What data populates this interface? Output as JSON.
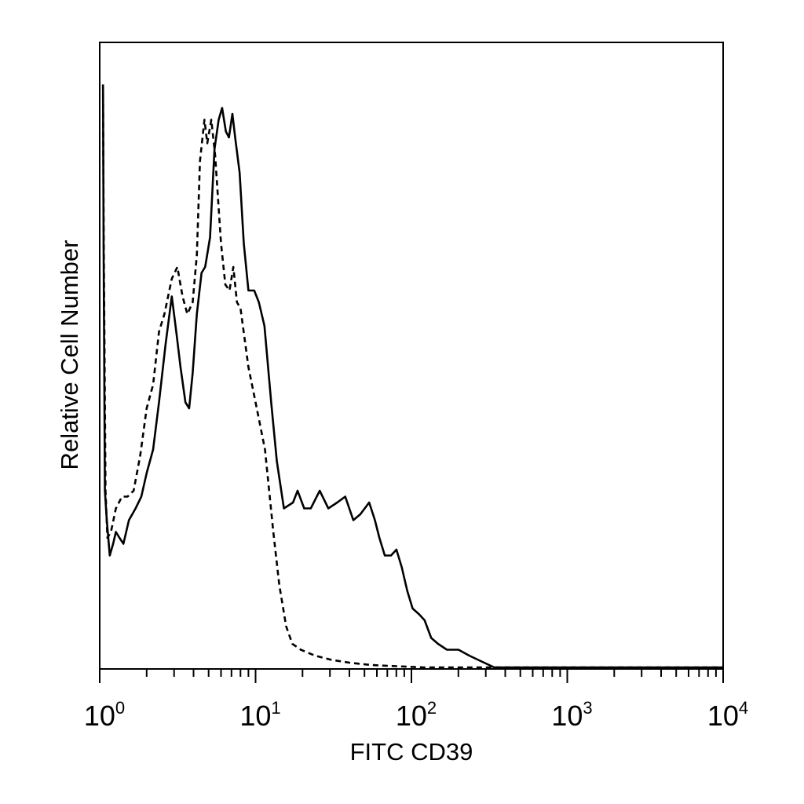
{
  "chart_data": {
    "type": "line",
    "title": "",
    "xlabel": "FITC CD39",
    "ylabel": "Relative Cell Number",
    "xscale": "log",
    "xlim": [
      1,
      10000
    ],
    "ylim": [
      0,
      1
    ],
    "grid": false,
    "legend": "none",
    "x_ticks": [
      {
        "base": "10",
        "exp": "0",
        "value": 1
      },
      {
        "base": "10",
        "exp": "1",
        "value": 10
      },
      {
        "base": "10",
        "exp": "2",
        "value": 100
      },
      {
        "base": "10",
        "exp": "3",
        "value": 1000
      },
      {
        "base": "10",
        "exp": "4",
        "value": 10000
      }
    ],
    "series": [
      {
        "style": "solid",
        "color": "#000000",
        "points": [
          [
            1.05,
            0.99
          ],
          [
            1.06,
            0.7
          ],
          [
            1.08,
            0.3
          ],
          [
            1.11,
            0.25
          ],
          [
            1.16,
            0.19
          ],
          [
            1.22,
            0.21
          ],
          [
            1.27,
            0.23
          ],
          [
            1.34,
            0.22
          ],
          [
            1.42,
            0.21
          ],
          [
            1.54,
            0.25
          ],
          [
            1.7,
            0.27
          ],
          [
            1.85,
            0.29
          ],
          [
            2.0,
            0.33
          ],
          [
            2.2,
            0.37
          ],
          [
            2.4,
            0.45
          ],
          [
            2.65,
            0.55
          ],
          [
            2.9,
            0.63
          ],
          [
            3.1,
            0.57
          ],
          [
            3.3,
            0.51
          ],
          [
            3.55,
            0.45
          ],
          [
            3.75,
            0.44
          ],
          [
            3.95,
            0.5
          ],
          [
            4.2,
            0.6
          ],
          [
            4.5,
            0.67
          ],
          [
            4.75,
            0.68
          ],
          [
            5.1,
            0.73
          ],
          [
            5.45,
            0.88
          ],
          [
            5.8,
            0.93
          ],
          [
            6.1,
            0.95
          ],
          [
            6.45,
            0.91
          ],
          [
            6.75,
            0.9
          ],
          [
            7.1,
            0.94
          ],
          [
            7.4,
            0.9
          ],
          [
            7.9,
            0.84
          ],
          [
            8.4,
            0.72
          ],
          [
            9.0,
            0.64
          ],
          [
            9.8,
            0.64
          ],
          [
            10.5,
            0.62
          ],
          [
            11.4,
            0.58
          ],
          [
            12.6,
            0.45
          ],
          [
            13.7,
            0.35
          ],
          [
            15.2,
            0.27
          ],
          [
            17.4,
            0.28
          ],
          [
            18.6,
            0.3
          ],
          [
            20.5,
            0.27
          ],
          [
            22.6,
            0.27
          ],
          [
            25.8,
            0.3
          ],
          [
            29.3,
            0.27
          ],
          [
            33.4,
            0.28
          ],
          [
            37.6,
            0.29
          ],
          [
            42.4,
            0.25
          ],
          [
            47.0,
            0.26
          ],
          [
            53.6,
            0.28
          ],
          [
            58.3,
            0.25
          ],
          [
            62.3,
            0.22
          ],
          [
            67.5,
            0.19
          ],
          [
            74.0,
            0.19
          ],
          [
            80.1,
            0.2
          ],
          [
            86.7,
            0.17
          ],
          [
            94.0,
            0.13
          ],
          [
            101.8,
            0.1
          ],
          [
            112.2,
            0.09
          ],
          [
            121.5,
            0.08
          ],
          [
            133.9,
            0.05
          ],
          [
            148.1,
            0.04
          ],
          [
            169.0,
            0.03
          ],
          [
            200.6,
            0.03
          ],
          [
            234.8,
            0.02
          ],
          [
            282.2,
            0.01
          ],
          [
            340.0,
            0.0
          ],
          [
            10000,
            0.0
          ]
        ]
      },
      {
        "style": "dashed",
        "color": "#000000",
        "points": [
          [
            1.05,
            0.99
          ],
          [
            1.06,
            0.75
          ],
          [
            1.09,
            0.3
          ],
          [
            1.12,
            0.22
          ],
          [
            1.18,
            0.23
          ],
          [
            1.27,
            0.27
          ],
          [
            1.39,
            0.29
          ],
          [
            1.51,
            0.29
          ],
          [
            1.65,
            0.3
          ],
          [
            1.82,
            0.36
          ],
          [
            2.0,
            0.44
          ],
          [
            2.2,
            0.48
          ],
          [
            2.4,
            0.57
          ],
          [
            2.6,
            0.6
          ],
          [
            2.9,
            0.66
          ],
          [
            3.15,
            0.68
          ],
          [
            3.4,
            0.63
          ],
          [
            3.65,
            0.6
          ],
          [
            3.95,
            0.62
          ],
          [
            4.2,
            0.7
          ],
          [
            4.4,
            0.86
          ],
          [
            4.7,
            0.93
          ],
          [
            4.9,
            0.89
          ],
          [
            5.2,
            0.93
          ],
          [
            5.5,
            0.87
          ],
          [
            6.0,
            0.72
          ],
          [
            6.4,
            0.65
          ],
          [
            6.8,
            0.64
          ],
          [
            7.2,
            0.68
          ],
          [
            7.6,
            0.62
          ],
          [
            8.0,
            0.61
          ],
          [
            9.0,
            0.51
          ],
          [
            10.0,
            0.45
          ],
          [
            11.5,
            0.37
          ],
          [
            13.0,
            0.23
          ],
          [
            14.2,
            0.14
          ],
          [
            15.7,
            0.07
          ],
          [
            17.2,
            0.04
          ],
          [
            19.5,
            0.03
          ],
          [
            24.0,
            0.02
          ],
          [
            30.5,
            0.013
          ],
          [
            40.0,
            0.008
          ],
          [
            55.0,
            0.004
          ],
          [
            80.0,
            0.002
          ],
          [
            120.0,
            0.0
          ],
          [
            10000,
            0.0
          ]
        ]
      }
    ]
  }
}
